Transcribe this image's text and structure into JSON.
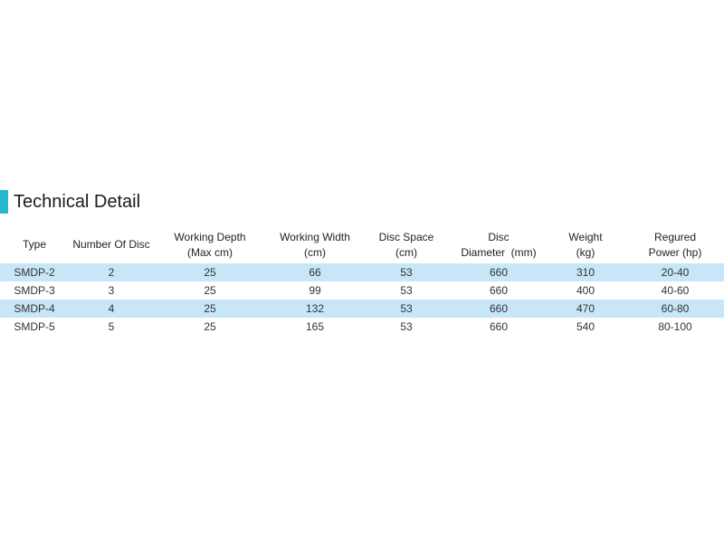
{
  "header": {
    "title": "Technical Detail"
  },
  "table": {
    "columns": [
      [
        "Type"
      ],
      [
        "Number Of Disc"
      ],
      [
        "Working Depth",
        "(Max cm)"
      ],
      [
        "Working Width",
        "(cm)"
      ],
      [
        "Disc Space",
        "(cm)"
      ],
      [
        "Disc",
        "Diameter  (mm)"
      ],
      [
        "Weight",
        "(kg)"
      ],
      [
        "Regured",
        "Power (hp)"
      ]
    ],
    "rows": [
      [
        "SMDP-2",
        2,
        25,
        66,
        53,
        660,
        310,
        "20-40"
      ],
      [
        "SMDP-3",
        3,
        25,
        99,
        53,
        660,
        400,
        "40-60"
      ],
      [
        "SMDP-4",
        4,
        25,
        132,
        53,
        660,
        470,
        "60-80"
      ],
      [
        "SMDP-5",
        5,
        25,
        165,
        53,
        660,
        540,
        "80-100"
      ]
    ]
  }
}
